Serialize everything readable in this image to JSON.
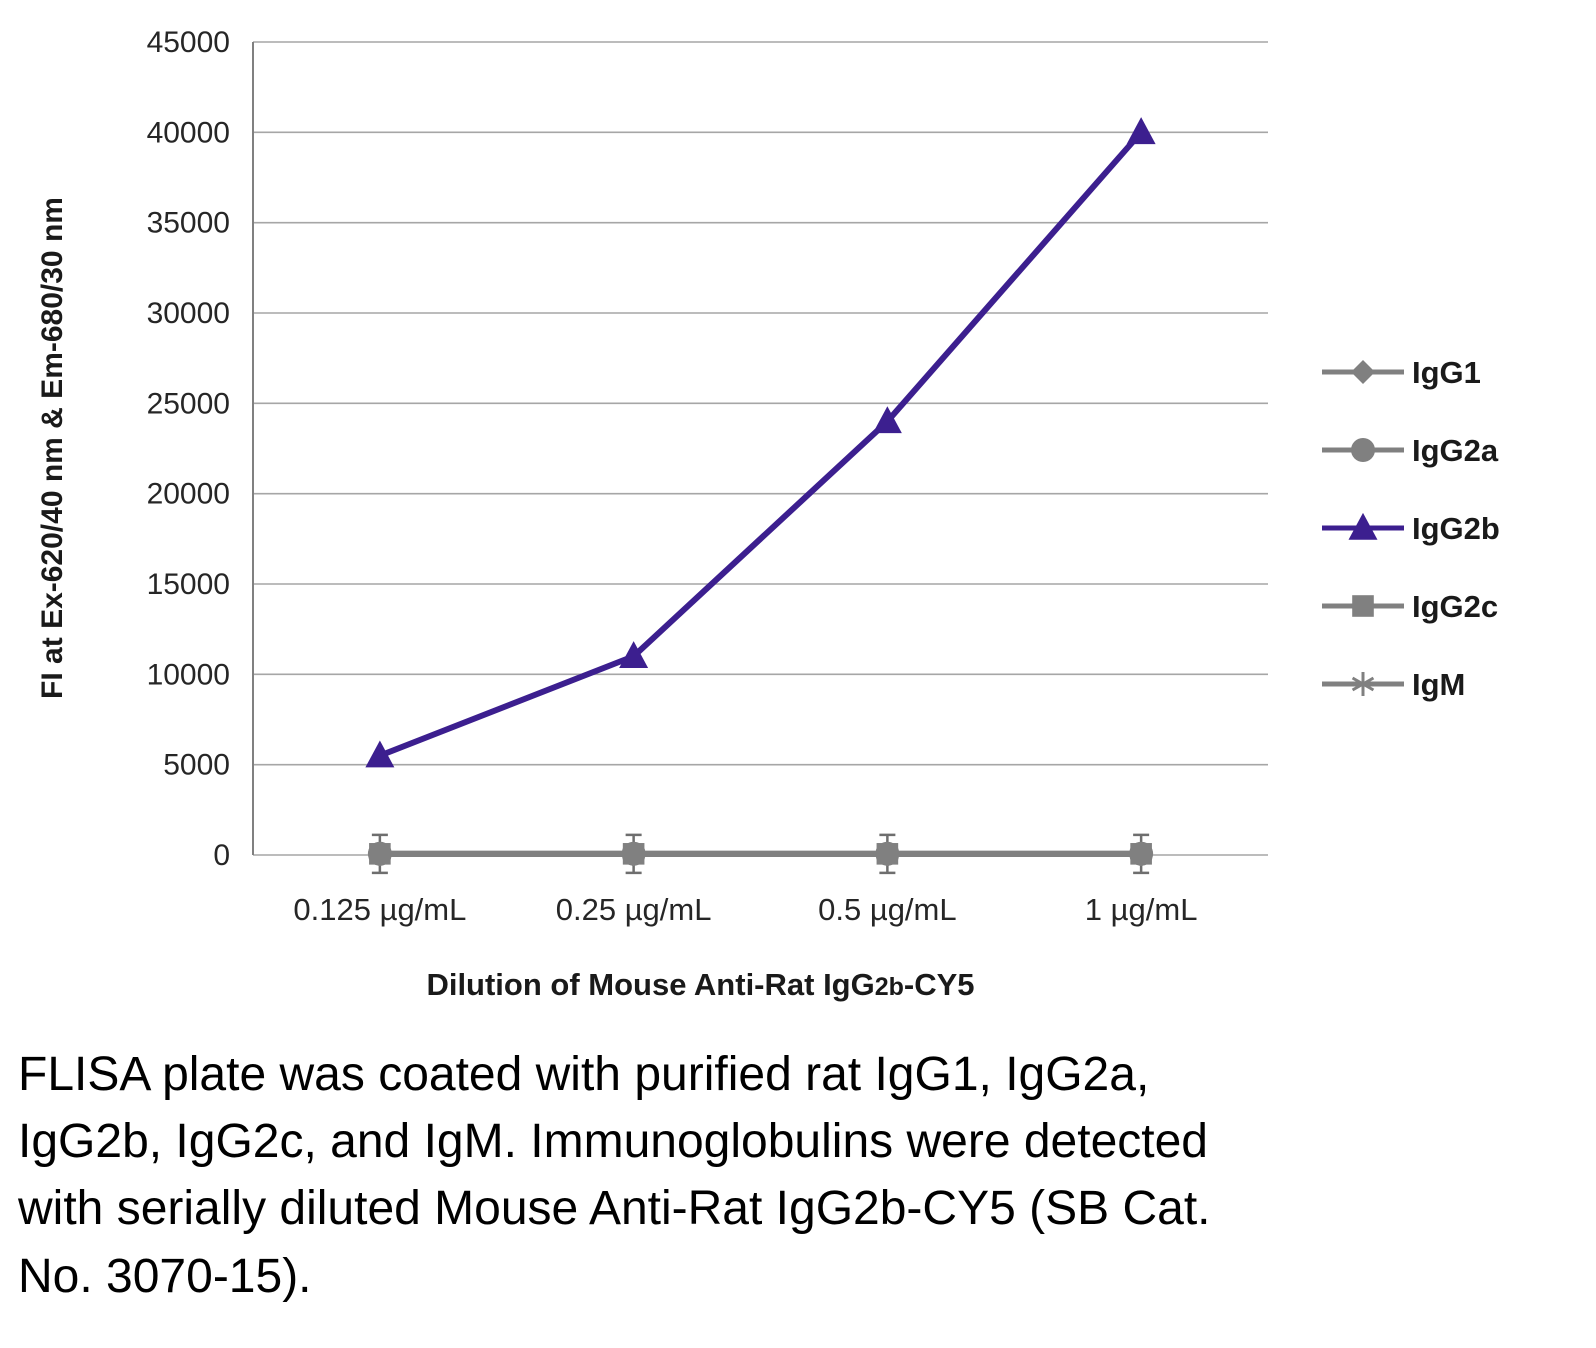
{
  "chart_data": {
    "type": "line",
    "categories": [
      "0.125 µg/mL",
      "0.25 µg/mL",
      "0.5 µg/mL",
      "1 µg/mL"
    ],
    "series": [
      {
        "name": "IgG1",
        "marker": "diamond",
        "color": "#808080",
        "values": [
          60,
          60,
          60,
          60
        ]
      },
      {
        "name": "IgG2a",
        "marker": "circle",
        "color": "#808080",
        "values": [
          70,
          70,
          70,
          70
        ]
      },
      {
        "name": "IgG2b",
        "marker": "triangle",
        "color": "#3C1F8F",
        "values": [
          5500,
          11000,
          24000,
          40000
        ]
      },
      {
        "name": "IgG2c",
        "marker": "square",
        "color": "#808080",
        "values": [
          65,
          65,
          65,
          65
        ]
      },
      {
        "name": "IgM",
        "marker": "star",
        "color": "#808080",
        "values": [
          55,
          55,
          55,
          55
        ]
      }
    ],
    "title": "",
    "ylabel": "FI at Ex-620/40 nm & Em-680/30 nm",
    "xlabel_parts": [
      {
        "t": "Dilution of Mouse Anti-Rat IgG",
        "small": false
      },
      {
        "t": "2b",
        "small": true
      },
      {
        "t": "-CY5",
        "small": false
      }
    ],
    "ylim": [
      0,
      45000
    ],
    "ytick_step": 5000,
    "grid": true,
    "legend_position": "right",
    "grid_color": "#A6A6A6",
    "axis_color": "#808080"
  },
  "caption": "FLISA plate was coated with purified rat IgG1, IgG2a, IgG2b, IgG2c, and IgM.  Immunoglobulins were detected with serially diluted Mouse Anti-Rat IgG2b-CY5 (SB Cat. No. 3070-15)."
}
